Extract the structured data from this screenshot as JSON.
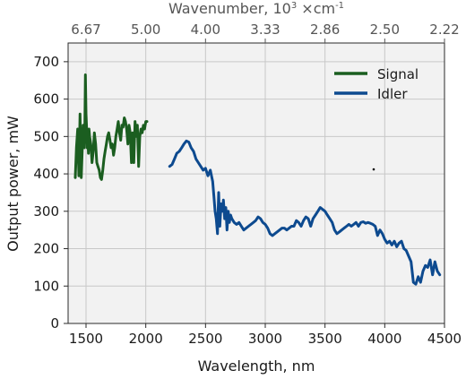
{
  "chart_data": {
    "type": "line",
    "xlabel": "Wavelength, nm",
    "ylabel": "Output power, mW",
    "top_xlabel_base": "Wavenumber, 10",
    "top_xlabel_exp": "3",
    "top_xlabel_unit": " ×cm",
    "top_xlabel_unit_exp": "-1",
    "xlim": [
      1350,
      4500
    ],
    "ylim": [
      0,
      750
    ],
    "xticks": [
      1500,
      2000,
      2500,
      3000,
      3500,
      4000,
      4500
    ],
    "yticks": [
      0,
      100,
      200,
      300,
      400,
      500,
      600,
      700
    ],
    "top_ticks": [
      {
        "wavelength": 1500,
        "label": "6.67"
      },
      {
        "wavelength": 2000,
        "label": "5.00"
      },
      {
        "wavelength": 2500,
        "label": "4.00"
      },
      {
        "wavelength": 3000,
        "label": "3.33"
      },
      {
        "wavelength": 3500,
        "label": "2.86"
      },
      {
        "wavelength": 4000,
        "label": "2.50"
      },
      {
        "wavelength": 4500,
        "label": "2.22"
      }
    ],
    "grid": true,
    "legend_position": "top-right",
    "series": [
      {
        "name": "Signal",
        "color": "#1b5e20",
        "x": [
          1410,
          1420,
          1430,
          1440,
          1450,
          1460,
          1470,
          1475,
          1480,
          1485,
          1490,
          1495,
          1500,
          1505,
          1510,
          1515,
          1520,
          1525,
          1530,
          1540,
          1550,
          1560,
          1570,
          1580,
          1590,
          1600,
          1610,
          1620,
          1630,
          1640,
          1650,
          1660,
          1670,
          1680,
          1690,
          1700,
          1710,
          1720,
          1730,
          1740,
          1750,
          1760,
          1770,
          1780,
          1790,
          1800,
          1810,
          1820,
          1830,
          1840,
          1850,
          1860,
          1870,
          1880,
          1890,
          1900,
          1910,
          1920,
          1930,
          1940,
          1950,
          1960,
          1970,
          1980,
          1990,
          2000,
          2010
        ],
        "y": [
          390,
          470,
          520,
          395,
          560,
          390,
          480,
          530,
          520,
          470,
          530,
          665,
          560,
          520,
          470,
          500,
          455,
          520,
          500,
          480,
          430,
          460,
          510,
          480,
          430,
          420,
          410,
          390,
          385,
          410,
          440,
          460,
          480,
          500,
          510,
          490,
          470,
          480,
          450,
          470,
          500,
          520,
          540,
          510,
          490,
          530,
          525,
          550,
          540,
          520,
          480,
          530,
          510,
          430,
          510,
          430,
          540,
          500,
          530,
          420,
          500,
          520,
          510,
          530,
          520,
          540,
          540
        ]
      },
      {
        "name": "Idler",
        "color": "#0d4a8f",
        "x": [
          2200,
          2220,
          2240,
          2260,
          2280,
          2300,
          2320,
          2340,
          2360,
          2380,
          2400,
          2420,
          2440,
          2460,
          2480,
          2500,
          2520,
          2540,
          2560,
          2570,
          2580,
          2590,
          2600,
          2610,
          2620,
          2630,
          2640,
          2650,
          2660,
          2670,
          2680,
          2690,
          2700,
          2710,
          2720,
          2740,
          2760,
          2780,
          2800,
          2820,
          2840,
          2860,
          2880,
          2900,
          2920,
          2940,
          2960,
          2980,
          3000,
          3020,
          3040,
          3060,
          3080,
          3100,
          3120,
          3140,
          3160,
          3180,
          3200,
          3220,
          3240,
          3260,
          3280,
          3300,
          3320,
          3340,
          3360,
          3380,
          3400,
          3420,
          3440,
          3460,
          3480,
          3500,
          3520,
          3540,
          3560,
          3580,
          3600,
          3620,
          3640,
          3660,
          3680,
          3700,
          3720,
          3740,
          3760,
          3780,
          3800,
          3820,
          3840,
          3860,
          3880,
          3900,
          3920,
          3940,
          3960,
          3980,
          4000,
          4020,
          4040,
          4060,
          4080,
          4100,
          4120,
          4140,
          4160,
          4180,
          4200,
          4220,
          4240,
          4260,
          4280,
          4300,
          4320,
          4340,
          4360,
          4380,
          4400,
          4420,
          4440,
          4460
        ],
        "y": [
          420,
          425,
          440,
          455,
          460,
          470,
          480,
          488,
          485,
          470,
          460,
          440,
          430,
          420,
          410,
          415,
          395,
          410,
          380,
          340,
          300,
          280,
          240,
          350,
          260,
          320,
          300,
          330,
          280,
          310,
          250,
          300,
          270,
          290,
          280,
          270,
          265,
          270,
          260,
          250,
          255,
          260,
          265,
          270,
          275,
          285,
          280,
          270,
          265,
          255,
          240,
          235,
          240,
          245,
          250,
          255,
          255,
          250,
          255,
          260,
          260,
          275,
          270,
          260,
          275,
          285,
          280,
          260,
          280,
          290,
          300,
          310,
          305,
          300,
          290,
          280,
          270,
          250,
          240,
          245,
          250,
          255,
          260,
          265,
          260,
          265,
          270,
          260,
          270,
          272,
          268,
          270,
          268,
          265,
          260,
          235,
          250,
          240,
          225,
          215,
          220,
          210,
          220,
          205,
          215,
          220,
          200,
          195,
          180,
          165,
          110,
          105,
          125,
          110,
          140,
          155,
          150,
          170,
          130,
          165,
          140,
          130
        ]
      }
    ]
  }
}
